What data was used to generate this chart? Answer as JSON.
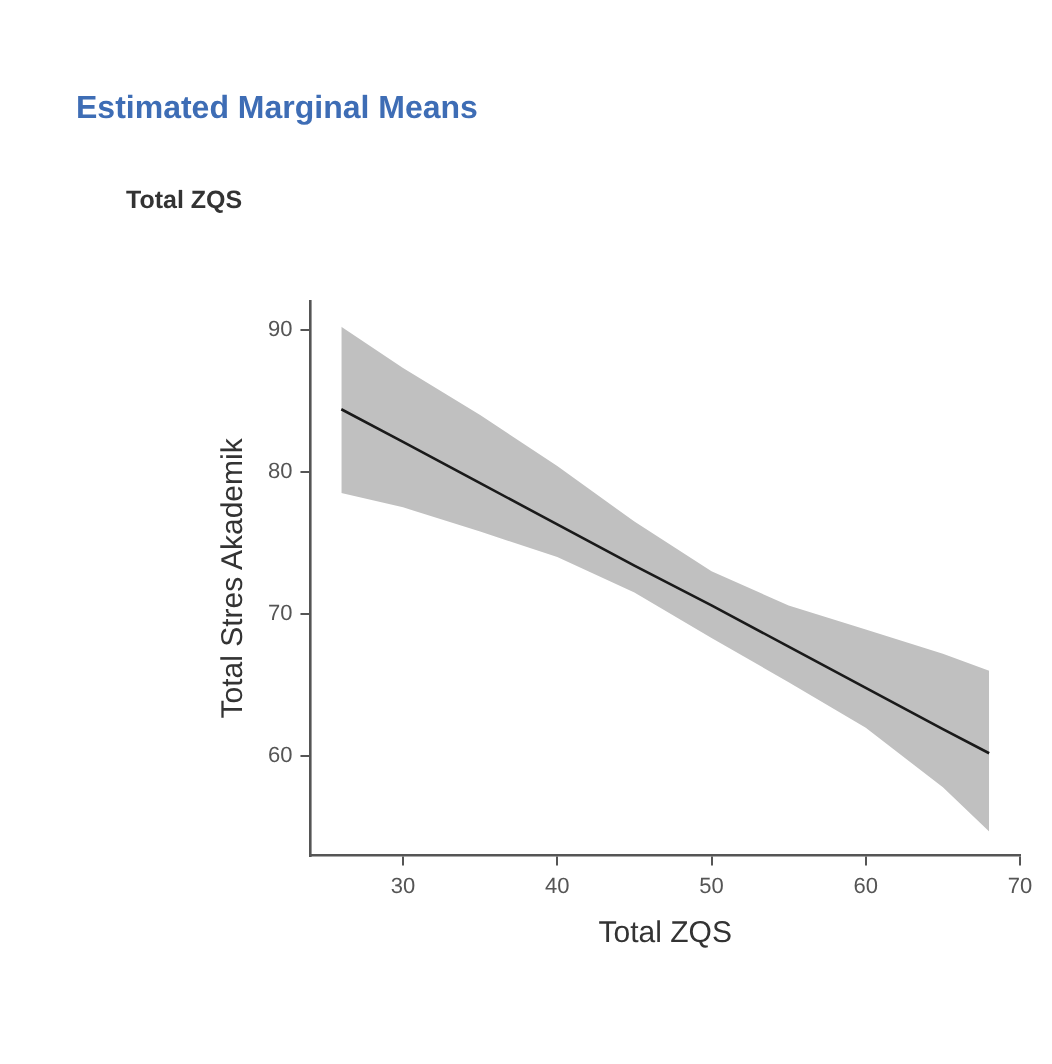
{
  "chart_data": {
    "type": "line",
    "title": "Estimated Marginal Means",
    "subtitle": "Total ZQS",
    "xlabel": "Total ZQS",
    "ylabel": "Total Stres Akademik",
    "xlim": [
      24,
      70
    ],
    "xticks": [
      30,
      40,
      50,
      60,
      70
    ],
    "ylim": [
      53,
      92
    ],
    "yticks": [
      60,
      70,
      80,
      90
    ],
    "grid": false,
    "legend": false,
    "marker": "none",
    "series": [
      {
        "color": "#1a1a1a",
        "x": [
          26,
          30,
          35,
          40,
          45,
          50,
          55,
          60,
          65,
          68
        ],
        "values": [
          84.4,
          82.1,
          79.2,
          76.3,
          73.4,
          70.6,
          67.7,
          64.8,
          61.9,
          60.2
        ],
        "lower": [
          78.5,
          77.5,
          75.8,
          74.0,
          71.5,
          68.3,
          65.2,
          62.0,
          57.8,
          54.7
        ],
        "upper": [
          90.2,
          87.3,
          84.0,
          80.4,
          76.5,
          73.0,
          70.6,
          68.9,
          67.2,
          66.0
        ]
      }
    ]
  }
}
